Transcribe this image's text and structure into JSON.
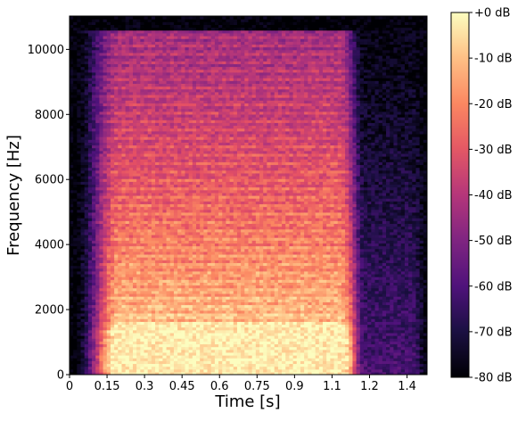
{
  "chart_data": {
    "type": "heatmap",
    "subtype": "spectrogram",
    "xlabel": "Time [s]",
    "ylabel": "Frequency [Hz]",
    "xlim": [
      0,
      1.43
    ],
    "ylim": [
      0,
      11025
    ],
    "x_ticks": [
      "0",
      "0.15",
      "0.3",
      "0.45",
      "0.6",
      "0.75",
      "0.9",
      "1.1",
      "1.2",
      "1.4"
    ],
    "x_tick_values": [
      0,
      0.15,
      0.3,
      0.45,
      0.6,
      0.75,
      0.9,
      1.05,
      1.2,
      1.35
    ],
    "y_ticks": [
      "0",
      "2000",
      "4000",
      "6000",
      "8000",
      "10000"
    ],
    "y_tick_values": [
      0,
      2000,
      4000,
      6000,
      8000,
      10000
    ],
    "colorbar": {
      "colormap": "magma",
      "range_db": [
        -80,
        0
      ],
      "tick_labels": [
        "+0 dB",
        "-10 dB",
        "-20 dB",
        "-30 dB",
        "-40 dB",
        "-50 dB",
        "-60 dB",
        "-70 dB",
        "-80 dB"
      ],
      "tick_values": [
        0,
        -10,
        -20,
        -30,
        -40,
        -50,
        -60,
        -70,
        -80
      ]
    },
    "signal": {
      "active_time_range": [
        0.2,
        1.1
      ],
      "tail_time_range": [
        1.1,
        1.4
      ],
      "strongest_band_hz": [
        300,
        1300
      ],
      "strongest_level_db": -3,
      "background_level_db": -80
    },
    "grid": false,
    "legend": "none"
  }
}
